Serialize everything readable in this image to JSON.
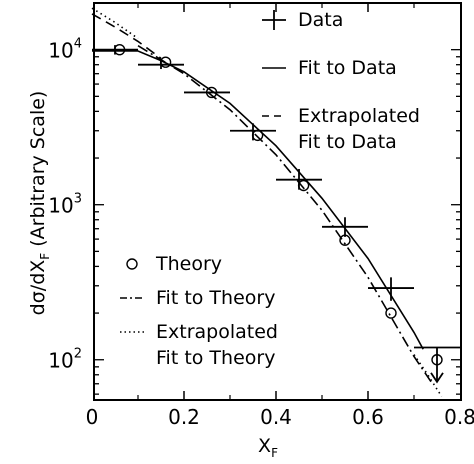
{
  "chart_data": {
    "type": "scatter",
    "xlabel": "X",
    "xlabel_sub": "F",
    "ylabel_main": "dσ/dX",
    "ylabel_sub": "F",
    "ylabel_paren": "(Arbitrary Scale)",
    "xlim": [
      0,
      0.8
    ],
    "ylim": [
      55,
      20000
    ],
    "yscale": "log",
    "x_ticks": [
      {
        "value": 0,
        "label": "0"
      },
      {
        "value": 0.2,
        "label": "0.2"
      },
      {
        "value": 0.4,
        "label": "0.4"
      },
      {
        "value": 0.6,
        "label": "0.6"
      },
      {
        "value": 0.8,
        "label": "0.8"
      }
    ],
    "y_ticks": [
      {
        "value": 100,
        "base": "10",
        "exp": "2"
      },
      {
        "value": 1000,
        "base": "10",
        "exp": "3"
      },
      {
        "value": 10000,
        "base": "10",
        "exp": "4"
      }
    ],
    "grid": false,
    "legend_upper": {
      "placement": "top-right",
      "items": [
        {
          "key": "data",
          "label": "Data",
          "style": "cross"
        },
        {
          "key": "fit_data",
          "label": "Fit to Data",
          "style": "solid"
        },
        {
          "key": "extrap_data",
          "label": [
            "Extrapolated",
            "Fit to Data"
          ],
          "style": "dashed"
        }
      ]
    },
    "legend_lower": {
      "placement": "bottom-left",
      "items": [
        {
          "key": "theory",
          "label": "Theory",
          "style": "circle"
        },
        {
          "key": "fit_theory",
          "label": "Fit to Theory",
          "style": "dashdot"
        },
        {
          "key": "extrap_theory",
          "label": [
            "Extrapolated",
            "Fit to Theory"
          ],
          "style": "dotted"
        }
      ]
    },
    "series": [
      {
        "name": "Data",
        "style": "cross",
        "points": [
          {
            "x": 0.05,
            "y": 10000,
            "xerr": 0.05,
            "yerr_lo": 9300,
            "yerr_hi": 10700
          },
          {
            "x": 0.15,
            "y": 8000,
            "xerr": 0.05,
            "yerr_lo": 7500,
            "yerr_hi": 8700
          },
          {
            "x": 0.25,
            "y": 5300,
            "xerr": 0.05,
            "yerr_lo": 5300,
            "yerr_hi": 5300
          },
          {
            "x": 0.35,
            "y": 3000,
            "xerr": 0.05,
            "yerr_lo": 2600,
            "yerr_hi": 3350
          },
          {
            "x": 0.45,
            "y": 1450,
            "xerr": 0.05,
            "yerr_lo": 1250,
            "yerr_hi": 1700
          },
          {
            "x": 0.55,
            "y": 720,
            "xerr": 0.05,
            "yerr_lo": 620,
            "yerr_hi": 830
          },
          {
            "x": 0.65,
            "y": 290,
            "xerr": 0.05,
            "yerr_lo": 240,
            "yerr_hi": 340
          },
          {
            "x": 0.75,
            "y": 120,
            "xerr": 0.05,
            "upper_limit": true,
            "arrow_to": 72
          }
        ]
      },
      {
        "name": "Theory",
        "style": "circle",
        "points": [
          {
            "x": 0.06,
            "y": 10000
          },
          {
            "x": 0.16,
            "y": 8300
          },
          {
            "x": 0.26,
            "y": 5300
          },
          {
            "x": 0.36,
            "y": 2800
          },
          {
            "x": 0.46,
            "y": 1330
          },
          {
            "x": 0.55,
            "y": 590
          },
          {
            "x": 0.65,
            "y": 200
          },
          {
            "x": 0.75,
            "y": 100
          }
        ]
      },
      {
        "name": "Fit to Data",
        "style": "solid",
        "points": [
          {
            "x": 0.0,
            "y": 9800
          },
          {
            "x": 0.1,
            "y": 9800
          },
          {
            "x": 0.15,
            "y": 8500
          },
          {
            "x": 0.2,
            "y": 7200
          },
          {
            "x": 0.3,
            "y": 4500
          },
          {
            "x": 0.4,
            "y": 2400
          },
          {
            "x": 0.5,
            "y": 1100
          },
          {
            "x": 0.6,
            "y": 450
          },
          {
            "x": 0.7,
            "y": 150
          },
          {
            "x": 0.72,
            "y": 117
          }
        ]
      },
      {
        "name": "Extrapolated Fit to Data",
        "style": "dashed",
        "points": [
          {
            "x": 0.0,
            "y": 17000
          },
          {
            "x": 0.05,
            "y": 14000
          },
          {
            "x": 0.1,
            "y": 11300
          },
          {
            "x": 0.15,
            "y": 8800
          }
        ]
      },
      {
        "name": "Fit to Theory",
        "style": "dashdot",
        "points": [
          {
            "x": 0.1,
            "y": 10600
          },
          {
            "x": 0.2,
            "y": 7000
          },
          {
            "x": 0.3,
            "y": 4100
          },
          {
            "x": 0.4,
            "y": 2100
          },
          {
            "x": 0.5,
            "y": 920
          },
          {
            "x": 0.6,
            "y": 340
          },
          {
            "x": 0.7,
            "y": 105
          },
          {
            "x": 0.74,
            "y": 70
          }
        ]
      },
      {
        "name": "Extrapolated Fit to Theory",
        "style": "dotted",
        "points": [
          {
            "x": 0.0,
            "y": 18500
          },
          {
            "x": 0.05,
            "y": 15000
          },
          {
            "x": 0.1,
            "y": 11800
          }
        ]
      },
      {
        "name": "Extrapolated Fit to Theory (high x)",
        "style": "dotted",
        "points": [
          {
            "x": 0.7,
            "y": 108
          },
          {
            "x": 0.73,
            "y": 80
          },
          {
            "x": 0.76,
            "y": 58
          }
        ]
      }
    ]
  }
}
